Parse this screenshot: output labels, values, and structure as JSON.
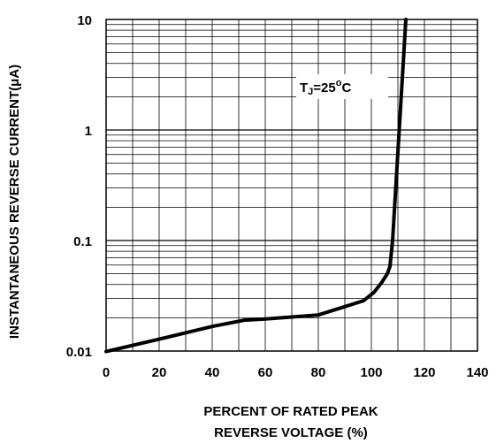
{
  "chart_data": {
    "type": "line",
    "title": "",
    "xlabel_line1": "PERCENT OF RATED PEAK",
    "xlabel_line2": "REVERSE VOLTAGE (%)",
    "ylabel": "INSTANTANEOUS REVERSE CURRENT(μA)",
    "xlim": [
      0,
      140
    ],
    "ylim": [
      0.01,
      10
    ],
    "yscale": "log",
    "grid": true,
    "x_ticks": [
      "0",
      "20",
      "40",
      "60",
      "80",
      "100",
      "120",
      "140"
    ],
    "y_ticks": [
      "0.01",
      "0.1",
      "1",
      "10"
    ],
    "annotation": {
      "prefix": "T",
      "sub": "J",
      "mid": "=25",
      "sup": "o",
      "suffix": "C"
    },
    "series": [
      {
        "x": [
          0,
          20,
          40,
          52,
          60,
          80,
          97,
          101,
          104,
          106,
          107,
          108,
          113
        ],
        "y": [
          0.0099,
          0.0128,
          0.0167,
          0.019,
          0.0195,
          0.0212,
          0.0285,
          0.034,
          0.042,
          0.05,
          0.058,
          0.1,
          10
        ]
      }
    ]
  }
}
